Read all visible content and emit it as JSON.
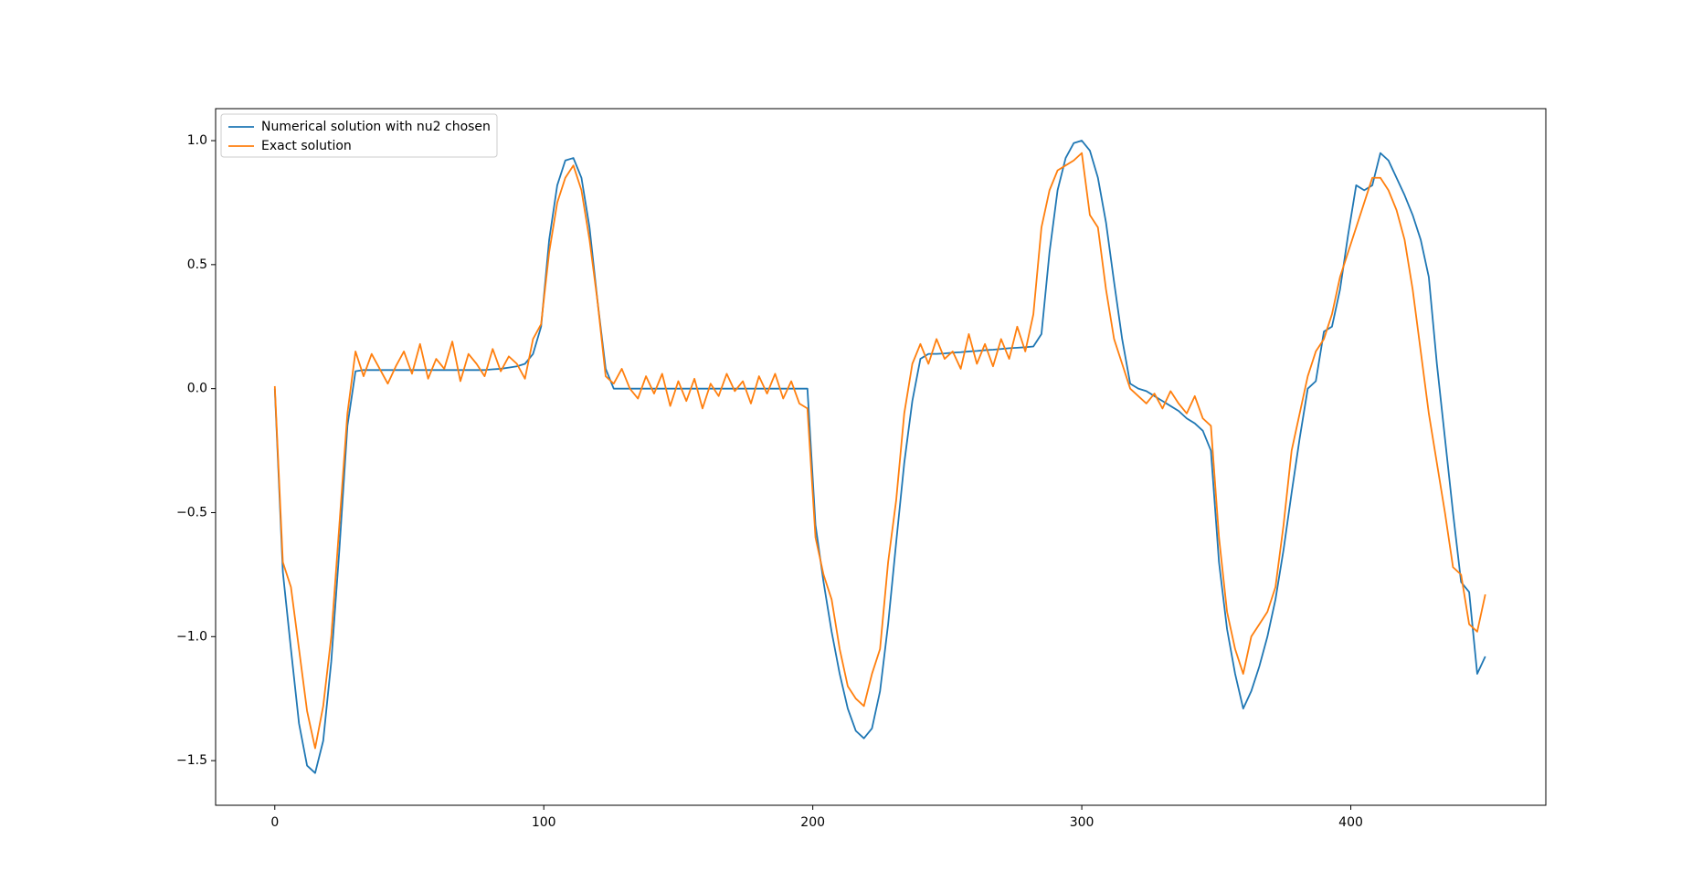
{
  "chart_data": {
    "type": "line",
    "x": [
      0,
      3,
      6,
      9,
      12,
      15,
      18,
      21,
      24,
      27,
      30,
      33,
      36,
      39,
      42,
      45,
      48,
      51,
      54,
      57,
      60,
      63,
      66,
      69,
      72,
      75,
      78,
      81,
      84,
      87,
      90,
      93,
      96,
      99,
      102,
      105,
      108,
      111,
      114,
      117,
      120,
      123,
      126,
      129,
      132,
      135,
      138,
      141,
      144,
      147,
      150,
      153,
      156,
      159,
      162,
      165,
      168,
      171,
      174,
      177,
      180,
      183,
      186,
      189,
      192,
      195,
      198,
      201,
      204,
      207,
      210,
      213,
      216,
      219,
      222,
      225,
      228,
      231,
      234,
      237,
      240,
      243,
      246,
      249,
      252,
      255,
      258,
      261,
      264,
      267,
      270,
      273,
      276,
      279,
      282,
      285,
      288,
      291,
      294,
      297,
      300,
      303,
      306,
      309,
      312,
      315,
      318,
      321,
      324,
      327,
      330,
      333,
      336,
      339,
      342,
      345,
      348,
      351,
      354,
      357,
      360,
      363,
      366,
      369,
      372,
      375,
      378,
      381,
      384,
      387,
      390,
      393,
      396,
      399,
      402,
      405,
      408,
      411,
      414,
      417,
      420,
      423,
      426,
      429,
      432,
      435,
      438,
      441,
      444,
      447,
      450
    ],
    "series": [
      {
        "name": "Numerical solution with nu2 chosen",
        "color": "#1f77b4",
        "values": [
          0.0,
          -0.74,
          -1.05,
          -1.35,
          -1.52,
          -1.55,
          -1.42,
          -1.1,
          -0.65,
          -0.15,
          0.07,
          0.075,
          0.075,
          0.075,
          0.075,
          0.075,
          0.075,
          0.075,
          0.075,
          0.075,
          0.075,
          0.075,
          0.075,
          0.075,
          0.075,
          0.075,
          0.075,
          0.078,
          0.08,
          0.085,
          0.09,
          0.1,
          0.14,
          0.25,
          0.6,
          0.82,
          0.92,
          0.93,
          0.85,
          0.65,
          0.35,
          0.08,
          0.0,
          0,
          0,
          0,
          0,
          0,
          0,
          0,
          0,
          0,
          0,
          0,
          0,
          0,
          0,
          0,
          0,
          0,
          0,
          0,
          0,
          0,
          0,
          0,
          0,
          -0.55,
          -0.78,
          -0.98,
          -1.15,
          -1.29,
          -1.38,
          -1.41,
          -1.37,
          -1.22,
          -0.95,
          -0.62,
          -0.3,
          -0.05,
          0.12,
          0.14,
          0.14,
          0.142,
          0.145,
          0.147,
          0.15,
          0.152,
          0.155,
          0.157,
          0.16,
          0.163,
          0.165,
          0.167,
          0.17,
          0.22,
          0.55,
          0.8,
          0.93,
          0.99,
          1.0,
          0.96,
          0.85,
          0.67,
          0.43,
          0.2,
          0.02,
          0.0,
          -0.01,
          -0.03,
          -0.05,
          -0.07,
          -0.09,
          -0.12,
          -0.14,
          -0.17,
          -0.25,
          -0.7,
          -0.97,
          -1.15,
          -1.29,
          -1.22,
          -1.12,
          -1.0,
          -0.85,
          -0.65,
          -0.42,
          -0.2,
          0.0,
          0.03,
          0.23,
          0.25,
          0.4,
          0.62,
          0.82,
          0.8,
          0.82,
          0.95,
          0.92,
          0.85,
          0.78,
          0.7,
          0.6,
          0.45,
          0.1,
          -0.2,
          -0.5,
          -0.78,
          -0.82,
          -1.15,
          -1.08
        ]
      },
      {
        "name": "Exact solution",
        "color": "#ff7f0e",
        "values": [
          0.01,
          -0.7,
          -0.8,
          -1.05,
          -1.3,
          -1.45,
          -1.28,
          -1.0,
          -0.55,
          -0.1,
          0.15,
          0.05,
          0.14,
          0.08,
          0.02,
          0.09,
          0.15,
          0.06,
          0.18,
          0.04,
          0.12,
          0.08,
          0.19,
          0.03,
          0.14,
          0.1,
          0.05,
          0.16,
          0.07,
          0.13,
          0.1,
          0.04,
          0.2,
          0.26,
          0.55,
          0.75,
          0.85,
          0.9,
          0.8,
          0.6,
          0.35,
          0.05,
          0.02,
          0.08,
          0.0,
          -0.04,
          0.05,
          -0.02,
          0.06,
          -0.07,
          0.03,
          -0.05,
          0.04,
          -0.08,
          0.02,
          -0.03,
          0.06,
          -0.01,
          0.03,
          -0.06,
          0.05,
          -0.02,
          0.06,
          -0.04,
          0.03,
          -0.06,
          -0.08,
          -0.6,
          -0.75,
          -0.85,
          -1.05,
          -1.2,
          -1.25,
          -1.28,
          -1.15,
          -1.05,
          -0.7,
          -0.45,
          -0.1,
          0.1,
          0.18,
          0.1,
          0.2,
          0.12,
          0.15,
          0.08,
          0.22,
          0.1,
          0.18,
          0.09,
          0.2,
          0.12,
          0.25,
          0.15,
          0.3,
          0.65,
          0.8,
          0.88,
          0.9,
          0.92,
          0.95,
          0.7,
          0.65,
          0.4,
          0.2,
          0.1,
          0.0,
          -0.03,
          -0.06,
          -0.02,
          -0.08,
          -0.01,
          -0.06,
          -0.1,
          -0.03,
          -0.12,
          -0.15,
          -0.6,
          -0.9,
          -1.05,
          -1.15,
          -1.0,
          -0.95,
          -0.9,
          -0.8,
          -0.55,
          -0.25,
          -0.1,
          0.05,
          0.15,
          0.2,
          0.3,
          0.45,
          0.55,
          0.65,
          0.75,
          0.85,
          0.85,
          0.8,
          0.72,
          0.6,
          0.4,
          0.15,
          -0.1,
          -0.3,
          -0.5,
          -0.72,
          -0.75,
          -0.95,
          -0.98,
          -0.83
        ]
      }
    ],
    "xlim": [
      -22,
      472.5
    ],
    "ylim": [
      -1.68,
      1.129
    ],
    "xticks": [
      0,
      100,
      200,
      300,
      400
    ],
    "yticks": [
      {
        "value": -1.5,
        "label": "−1.5"
      },
      {
        "value": -1.0,
        "label": "−1.0"
      },
      {
        "value": -0.5,
        "label": "−0.5"
      },
      {
        "value": 0,
        "label": "0.0"
      },
      {
        "value": 0.5,
        "label": "0.5"
      },
      {
        "value": 1.0,
        "label": "1.0"
      }
    ],
    "legend": "upper left"
  }
}
